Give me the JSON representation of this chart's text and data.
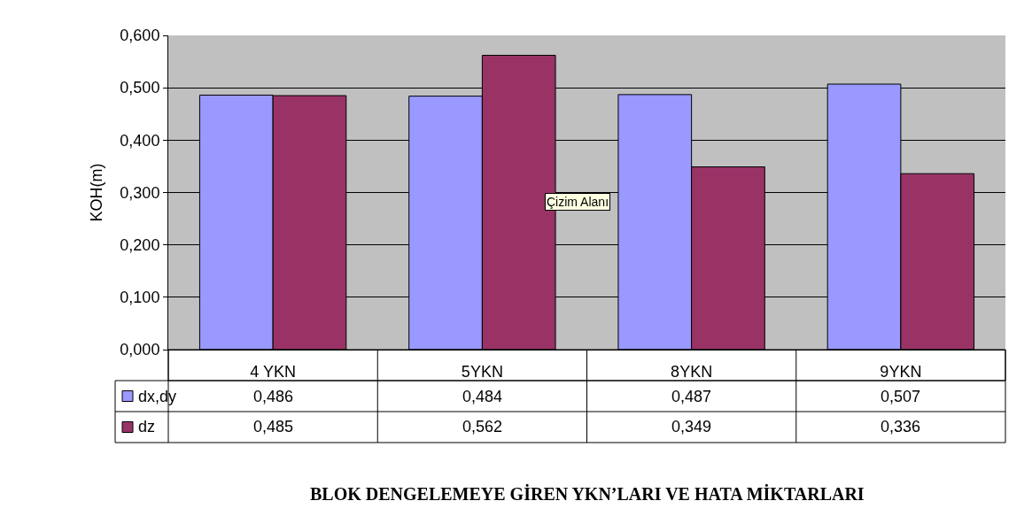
{
  "chart_data": {
    "type": "bar",
    "title": "BLOK DENGELEMEYE GİREN YKN’LARI VE HATA MİKTARLARI",
    "ylabel": "KOH(m)",
    "categories": [
      "4 YKN",
      "5YKN",
      "8YKN",
      "9YKN"
    ],
    "series": [
      {
        "name": "dx,dy",
        "color": "#9999ff",
        "values": [
          0.486,
          0.484,
          0.487,
          0.507
        ],
        "value_labels": [
          "0,486",
          "0,484",
          "0,487",
          "0,507"
        ]
      },
      {
        "name": "dz",
        "color": "#993366",
        "values": [
          0.485,
          0.562,
          0.349,
          0.336
        ],
        "value_labels": [
          "0,485",
          "0,562",
          "0,349",
          "0,336"
        ]
      }
    ],
    "ylim": [
      0,
      0.6
    ],
    "yticks": [
      {
        "value": 0,
        "label": "0,000"
      },
      {
        "value": 0.1,
        "label": "0,100"
      },
      {
        "value": 0.2,
        "label": "0,200"
      },
      {
        "value": 0.3,
        "label": "0,300"
      },
      {
        "value": 0.4,
        "label": "0,400"
      },
      {
        "value": 0.5,
        "label": "0,500"
      },
      {
        "value": 0.6,
        "label": "0,600"
      }
    ],
    "grid": "y",
    "legend": "bottom",
    "annotations": [
      "Çizim Alanı"
    ]
  }
}
